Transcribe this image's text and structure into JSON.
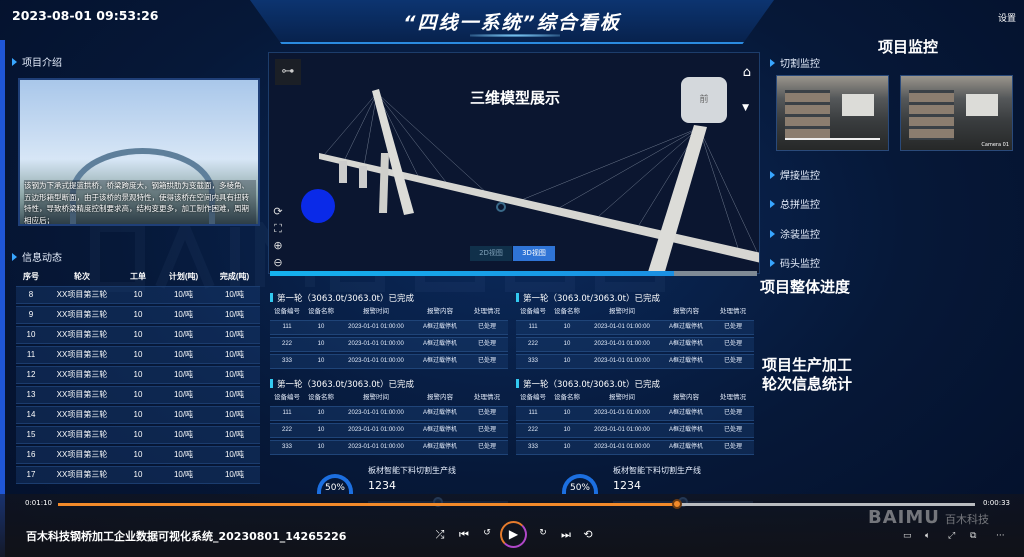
{
  "header": {
    "datetime": "2023-08-01 09:53:26",
    "title": "“四线一系统”综合看板",
    "settings": "设置"
  },
  "annotations": {
    "monitoring": "项目监控",
    "progress": "项目整体进度",
    "stats_line1": "项目生产加工",
    "stats_line2": "轮次信息统计"
  },
  "intro": {
    "title": "项目介绍",
    "text": "该钢为下承式提篮拱桥，桥梁跨度大，钢箱拱肋为变截面，多棱角、五边形箱型断面，由于该桥的景观特性，使得该桥在空间内具有扭转特性，导致桥梁精度控制要求高，结构变更多，加工制作困难，周期相应后；"
  },
  "info": {
    "title": "信息动态",
    "columns": [
      "序号",
      "轮次",
      "工单",
      "计划(吨)",
      "完成(吨)"
    ],
    "rows": [
      [
        "8",
        "XX项目第三轮",
        "10",
        "10/吨",
        "10/吨"
      ],
      [
        "9",
        "XX项目第三轮",
        "10",
        "10/吨",
        "10/吨"
      ],
      [
        "10",
        "XX项目第三轮",
        "10",
        "10/吨",
        "10/吨"
      ],
      [
        "11",
        "XX项目第三轮",
        "10",
        "10/吨",
        "10/吨"
      ],
      [
        "12",
        "XX项目第三轮",
        "10",
        "10/吨",
        "10/吨"
      ],
      [
        "13",
        "XX项目第三轮",
        "10",
        "10/吨",
        "10/吨"
      ],
      [
        "14",
        "XX项目第三轮",
        "10",
        "10/吨",
        "10/吨"
      ],
      [
        "15",
        "XX项目第三轮",
        "10",
        "10/吨",
        "10/吨"
      ],
      [
        "16",
        "XX项目第三轮",
        "10",
        "10/吨",
        "10/吨"
      ],
      [
        "17",
        "XX项目第三轮",
        "10",
        "10/吨",
        "10/吨"
      ]
    ]
  },
  "viewer": {
    "title": "三维模型展示",
    "cube_front": "前",
    "btn_2d": "2D视图",
    "btn_3d": "3D视图",
    "active_view": "3D视图",
    "progress_percent": 83,
    "progress_color": "#15b2ee"
  },
  "alarm_groups": {
    "columns": [
      "设备编号",
      "设备名称",
      "报警时间",
      "报警内容",
      "处理情况"
    ],
    "groups": [
      {
        "title": "第一轮（3063.0t/3063.0t）已完成",
        "rows": [
          [
            "111",
            "10",
            "2023-01-01 01:00:00",
            "A框过载停机",
            "已处理"
          ],
          [
            "222",
            "10",
            "2023-01-01 01:00:00",
            "A框过载停机",
            "已处理"
          ],
          [
            "333",
            "10",
            "2023-01-01 01:00:00",
            "A框过载停机",
            "已处理"
          ]
        ]
      },
      {
        "title": "第一轮（3063.0t/3063.0t）已完成",
        "rows": [
          [
            "111",
            "10",
            "2023-01-01 01:00:00",
            "A框过载停机",
            "已处理"
          ],
          [
            "222",
            "10",
            "2023-01-01 01:00:00",
            "A框过载停机",
            "已处理"
          ],
          [
            "333",
            "10",
            "2023-01-01 01:00:00",
            "A框过载停机",
            "已处理"
          ]
        ]
      },
      {
        "title": "第一轮（3063.0t/3063.0t）已完成",
        "rows": [
          [
            "111",
            "10",
            "2023-01-01 01:00:00",
            "A框过载停机",
            "已处理"
          ],
          [
            "222",
            "10",
            "2023-01-01 01:00:00",
            "A框过载停机",
            "已处理"
          ],
          [
            "333",
            "10",
            "2023-01-01 01:00:00",
            "A框过载停机",
            "已处理"
          ]
        ]
      },
      {
        "title": "第一轮（3063.0t/3063.0t）已完成",
        "rows": [
          [
            "111",
            "10",
            "2023-01-01 01:00:00",
            "A框过载停机",
            "已处理"
          ],
          [
            "222",
            "10",
            "2023-01-01 01:00:00",
            "A框过载停机",
            "已处理"
          ],
          [
            "333",
            "10",
            "2023-01-01 01:00:00",
            "A框过载停机",
            "已处理"
          ]
        ]
      }
    ]
  },
  "lines": [
    {
      "percent": "50%",
      "name": "板材智能下料切割生产线",
      "value": "1234"
    },
    {
      "percent": "50%",
      "name": "板材智能下料切割生产线",
      "value": "1234"
    }
  ],
  "monitor": {
    "cutting": "切割监控",
    "welding": "焊接监控",
    "assembly": "总拼监控",
    "painting": "涂装监控",
    "dock": "码头监控",
    "camera_label": "Camera 01"
  },
  "watermark": {
    "brand": "BAIMU",
    "brand_cn": "百木科技"
  },
  "player": {
    "file_title": "百木科技钢桥加工企业数据可视化系统_20230801_14265226",
    "elapsed": "0:01:10",
    "remaining": "0:00:33",
    "progress_percent": 67.5,
    "accent": "#f28a2a"
  }
}
